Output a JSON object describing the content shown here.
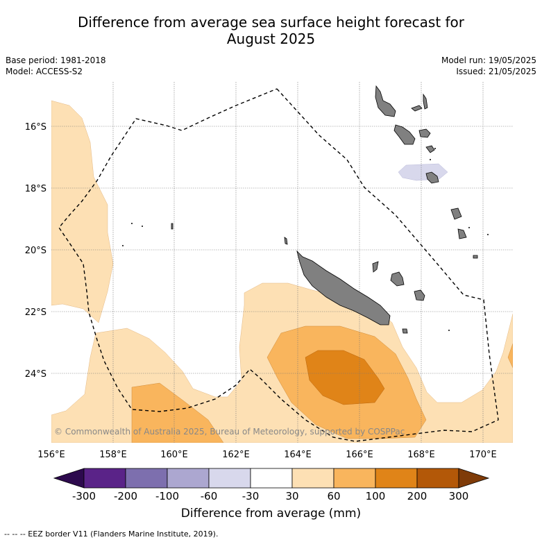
{
  "title_line1": "Difference from average sea surface height forecast for",
  "title_line2": "August 2025",
  "base_period": "Base period: 1981-2018",
  "model": "Model: ACCESS-S2",
  "model_run": "Model run: 19/05/2025",
  "issued": "Issued: 21/05/2025",
  "copyright": "© Commonwealth of Australia 2025, Bureau of Meteorology, supported by COSPPac",
  "lon_labels": [
    "156°E",
    "158°E",
    "160°E",
    "162°E",
    "164°E",
    "166°E",
    "168°E",
    "170°E"
  ],
  "lat_labels": [
    "16°S",
    "18°S",
    "20°S",
    "22°S",
    "24°S"
  ],
  "colorbar": {
    "ticks": [
      "-300",
      "-200",
      "-100",
      "-60",
      "-30",
      "30",
      "60",
      "100",
      "200",
      "300"
    ],
    "colors": [
      "#2d0a4e",
      "#5a2388",
      "#7d6fae",
      "#aca7d0",
      "#d8d8ec",
      "#ffffff",
      "#fde0b4",
      "#f9b55d",
      "#e08418",
      "#b35808",
      "#7f3b08"
    ],
    "title": "Difference from average (mm)"
  },
  "footer": "--  --  -- EEZ border V11 (Flanders Marine Institute, 2019).",
  "colors": {
    "land": "#808080",
    "level_30_60": "#fde0b4",
    "level_60_100": "#f9b55d",
    "level_100_200": "#e08418",
    "level_neg_60_30": "#d8d8ec"
  }
}
